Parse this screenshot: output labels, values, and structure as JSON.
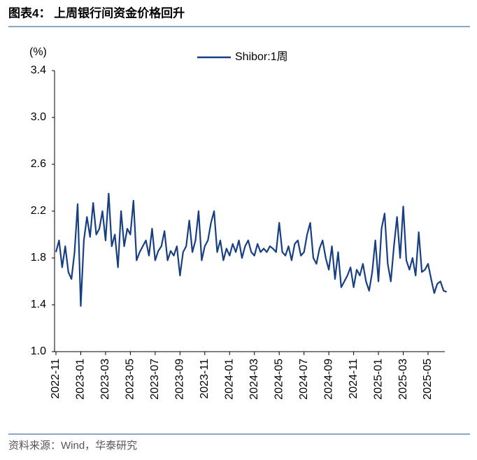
{
  "title": "图表4： 上周银行间资金价格回升",
  "source": "资料来源：Wind，华泰研究",
  "chart_data": {
    "type": "line",
    "y_label": "(%)",
    "categories": [
      "2022-11",
      null,
      null,
      null,
      null,
      null,
      null,
      null,
      "2023-01",
      null,
      null,
      null,
      null,
      null,
      null,
      null,
      "2023-03",
      null,
      null,
      null,
      null,
      null,
      null,
      null,
      "2023-05",
      null,
      null,
      null,
      null,
      null,
      null,
      null,
      "2023-07",
      null,
      null,
      null,
      null,
      null,
      null,
      null,
      "2023-09",
      null,
      null,
      null,
      null,
      null,
      null,
      null,
      "2023-11",
      null,
      null,
      null,
      null,
      null,
      null,
      null,
      "2024-01",
      null,
      null,
      null,
      null,
      null,
      null,
      null,
      "2024-03",
      null,
      null,
      null,
      null,
      null,
      null,
      null,
      "2024-05",
      null,
      null,
      null,
      null,
      null,
      null,
      null,
      "2024-07",
      null,
      null,
      null,
      null,
      null,
      null,
      null,
      "2024-09",
      null,
      null,
      null,
      null,
      null,
      null,
      null,
      "2024-11",
      null,
      null,
      null,
      null,
      null,
      null,
      null,
      "2025-01",
      null,
      null,
      null,
      null,
      null,
      null,
      null,
      "2025-03",
      null,
      null,
      null,
      null,
      null,
      null,
      null,
      "2025-05",
      null,
      null,
      null,
      null,
      null,
      null
    ],
    "series": [
      {
        "name": "Shibor:1周",
        "color": "#173f82",
        "values": [
          1.85,
          1.95,
          1.72,
          1.9,
          1.68,
          1.62,
          1.85,
          2.26,
          1.39,
          1.95,
          2.15,
          1.98,
          2.27,
          2.0,
          2.05,
          2.2,
          1.95,
          2.35,
          1.9,
          2.0,
          1.72,
          2.2,
          1.9,
          2.05,
          2.0,
          2.29,
          1.78,
          1.85,
          1.9,
          1.95,
          1.82,
          2.05,
          1.78,
          1.86,
          1.9,
          2.03,
          1.78,
          1.86,
          1.82,
          1.9,
          1.65,
          1.85,
          1.9,
          2.12,
          1.85,
          1.95,
          2.2,
          1.78,
          1.9,
          1.95,
          2.1,
          2.2,
          1.85,
          1.95,
          1.78,
          1.88,
          1.82,
          1.92,
          1.85,
          1.95,
          1.8,
          1.9,
          1.95,
          1.85,
          1.82,
          1.92,
          1.85,
          1.88,
          1.85,
          1.9,
          1.88,
          1.85,
          2.1,
          1.85,
          1.82,
          1.9,
          1.78,
          1.92,
          1.95,
          1.82,
          1.85,
          2.0,
          2.1,
          1.8,
          1.75,
          1.88,
          1.95,
          1.8,
          1.7,
          1.9,
          1.62,
          1.85,
          1.55,
          1.6,
          1.65,
          1.72,
          1.55,
          1.7,
          1.65,
          1.75,
          1.6,
          1.52,
          1.68,
          1.95,
          1.6,
          2.05,
          2.18,
          1.75,
          1.6,
          1.9,
          2.15,
          1.8,
          2.24,
          1.78,
          1.7,
          1.8,
          1.65,
          2.02,
          1.68,
          1.7,
          1.75,
          1.62,
          1.5,
          1.58,
          1.6,
          1.52,
          1.51
        ]
      }
    ],
    "ylim": [
      1.0,
      3.4
    ],
    "yticks": [
      {
        "value": 1.0,
        "label": "1.0"
      },
      1.4,
      1.8,
      2.2,
      2.6,
      {
        "value": 3.0,
        "label": "3.0"
      },
      3.4
    ],
    "legend": "top"
  }
}
